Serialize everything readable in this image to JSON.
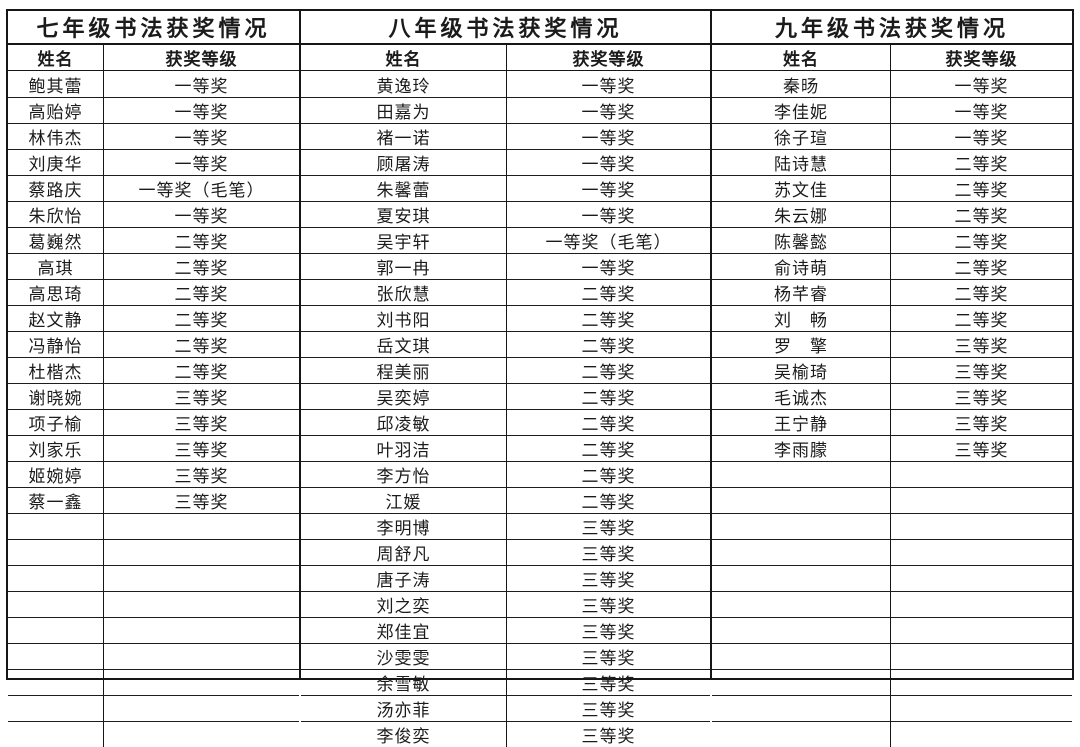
{
  "sections": [
    {
      "title": "七年级书法获奖情况",
      "headers": {
        "name": "姓名",
        "award": "获奖等级"
      },
      "row_count": 26,
      "rows": [
        {
          "name": "鲍其蕾",
          "award": "一等奖"
        },
        {
          "name": "高贻婷",
          "award": "一等奖"
        },
        {
          "name": "林伟杰",
          "award": "一等奖"
        },
        {
          "name": "刘庚华",
          "award": "一等奖"
        },
        {
          "name": "蔡路庆",
          "award": "一等奖（毛笔）"
        },
        {
          "name": "朱欣怡",
          "award": "一等奖"
        },
        {
          "name": "葛巍然",
          "award": "二等奖"
        },
        {
          "name": "高琪",
          "award": "二等奖"
        },
        {
          "name": "高思琦",
          "award": "二等奖"
        },
        {
          "name": "赵文静",
          "award": "二等奖"
        },
        {
          "name": "冯静怡",
          "award": "二等奖"
        },
        {
          "name": "杜楷杰",
          "award": "二等奖"
        },
        {
          "name": "谢晓婉",
          "award": "三等奖"
        },
        {
          "name": "项子榆",
          "award": "三等奖"
        },
        {
          "name": "刘家乐",
          "award": "三等奖"
        },
        {
          "name": "姬婉婷",
          "award": "三等奖"
        },
        {
          "name": "蔡一鑫",
          "award": "三等奖"
        }
      ]
    },
    {
      "title": "八年级书法获奖情况",
      "headers": {
        "name": "姓名",
        "award": "获奖等级"
      },
      "row_count": 26,
      "rows": [
        {
          "name": "黄逸玲",
          "award": "一等奖"
        },
        {
          "name": "田嘉为",
          "award": "一等奖"
        },
        {
          "name": "褚一诺",
          "award": "一等奖"
        },
        {
          "name": "顾屠涛",
          "award": "一等奖"
        },
        {
          "name": "朱馨蕾",
          "award": "一等奖"
        },
        {
          "name": "夏安琪",
          "award": "一等奖"
        },
        {
          "name": "吴宇轩",
          "award": "一等奖（毛笔）"
        },
        {
          "name": "郭一冉",
          "award": "一等奖"
        },
        {
          "name": "张欣慧",
          "award": "二等奖"
        },
        {
          "name": "刘书阳",
          "award": "二等奖"
        },
        {
          "name": "岳文琪",
          "award": "二等奖"
        },
        {
          "name": "程美丽",
          "award": "二等奖"
        },
        {
          "name": "吴奕婷",
          "award": "二等奖"
        },
        {
          "name": "邱凌敏",
          "award": "二等奖"
        },
        {
          "name": "叶羽洁",
          "award": "二等奖"
        },
        {
          "name": "李方怡",
          "award": "二等奖"
        },
        {
          "name": "江媛",
          "award": "二等奖"
        },
        {
          "name": "李明博",
          "award": "三等奖"
        },
        {
          "name": "周舒凡",
          "award": "三等奖"
        },
        {
          "name": "唐子涛",
          "award": "三等奖"
        },
        {
          "name": "刘之奕",
          "award": "三等奖"
        },
        {
          "name": "郑佳宜",
          "award": "三等奖"
        },
        {
          "name": "沙雯雯",
          "award": "三等奖"
        },
        {
          "name": "余雪敏",
          "award": "三等奖"
        },
        {
          "name": "汤亦菲",
          "award": "三等奖"
        },
        {
          "name": "李俊奕",
          "award": "三等奖"
        }
      ]
    },
    {
      "title": "九年级书法获奖情况",
      "headers": {
        "name": "姓名",
        "award": "获奖等级"
      },
      "row_count": 26,
      "rows": [
        {
          "name": "秦旸",
          "award": "一等奖"
        },
        {
          "name": "李佳妮",
          "award": "一等奖"
        },
        {
          "name": "徐子瑄",
          "award": "一等奖"
        },
        {
          "name": "陆诗慧",
          "award": "二等奖"
        },
        {
          "name": "苏文佳",
          "award": "二等奖"
        },
        {
          "name": "朱云娜",
          "award": "二等奖"
        },
        {
          "name": "陈馨懿",
          "award": "二等奖"
        },
        {
          "name": "俞诗萌",
          "award": "二等奖"
        },
        {
          "name": "杨芊睿",
          "award": "二等奖"
        },
        {
          "name": "刘　畅",
          "award": "二等奖"
        },
        {
          "name": "罗　擎",
          "award": "三等奖"
        },
        {
          "name": "吴榆琦",
          "award": "三等奖"
        },
        {
          "name": "毛诚杰",
          "award": "三等奖"
        },
        {
          "name": "王宁静",
          "award": "三等奖"
        },
        {
          "name": "李雨朦",
          "award": "三等奖"
        }
      ]
    }
  ]
}
